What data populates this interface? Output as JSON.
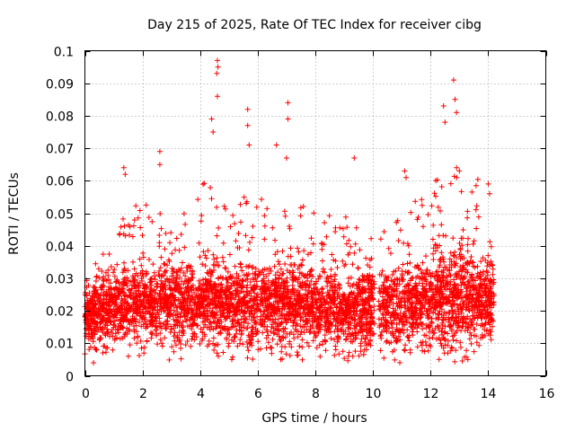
{
  "chart_data": {
    "type": "scatter",
    "title": "Day 215 of 2025, Rate Of TEC Index for receiver cibg",
    "xlabel": "GPS time / hours",
    "ylabel": "ROTI / TECUs",
    "xlim": [
      0,
      16
    ],
    "ylim": [
      0,
      0.1
    ],
    "xticks": [
      "0",
      "2",
      "4",
      "6",
      "8",
      "10",
      "12",
      "14",
      "16"
    ],
    "yticks": [
      "0",
      "0.01",
      "0.02",
      "0.03",
      "0.04",
      "0.05",
      "0.06",
      "0.07",
      "0.08",
      "0.09",
      "0.1"
    ],
    "grid": true,
    "marker": "+",
    "series_color": "#ff0000",
    "data_gaps_hours": [
      [
        10.05,
        10.2
      ]
    ],
    "notable_points": [
      {
        "x": 4.6,
        "y": 0.097
      },
      {
        "x": 4.62,
        "y": 0.095
      },
      {
        "x": 4.58,
        "y": 0.093
      },
      {
        "x": 4.6,
        "y": 0.086
      },
      {
        "x": 12.8,
        "y": 0.091
      },
      {
        "x": 12.85,
        "y": 0.085
      },
      {
        "x": 12.9,
        "y": 0.081
      },
      {
        "x": 12.45,
        "y": 0.083
      },
      {
        "x": 12.5,
        "y": 0.078
      },
      {
        "x": 7.05,
        "y": 0.084
      },
      {
        "x": 7.05,
        "y": 0.079
      },
      {
        "x": 5.65,
        "y": 0.082
      },
      {
        "x": 5.65,
        "y": 0.077
      },
      {
        "x": 5.7,
        "y": 0.071
      },
      {
        "x": 4.4,
        "y": 0.079
      },
      {
        "x": 4.45,
        "y": 0.075
      },
      {
        "x": 6.65,
        "y": 0.071
      },
      {
        "x": 2.6,
        "y": 0.069
      },
      {
        "x": 2.6,
        "y": 0.065
      },
      {
        "x": 7.0,
        "y": 0.067
      },
      {
        "x": 9.35,
        "y": 0.067
      },
      {
        "x": 1.35,
        "y": 0.064
      },
      {
        "x": 1.4,
        "y": 0.062
      },
      {
        "x": 11.1,
        "y": 0.063
      },
      {
        "x": 11.15,
        "y": 0.061
      },
      {
        "x": 13.0,
        "y": 0.063
      },
      {
        "x": 14.0,
        "y": 0.059
      },
      {
        "x": 14.05,
        "y": 0.056
      },
      {
        "x": 0.3,
        "y": 0.004
      },
      {
        "x": 5.1,
        "y": 0.005
      },
      {
        "x": 6.8,
        "y": 0.005
      },
      {
        "x": 9.3,
        "y": 0.006
      },
      {
        "x": 12.6,
        "y": 0.007
      }
    ],
    "density_profile": {
      "description": "dense band of points; per-hour typical ROTI centre, spread and upper envelope",
      "hours": [
        0,
        1,
        2,
        3,
        4,
        5,
        6,
        7,
        8,
        9,
        10,
        11,
        12,
        13,
        14,
        14.2
      ],
      "centre": [
        0.018,
        0.021,
        0.022,
        0.022,
        0.022,
        0.021,
        0.021,
        0.022,
        0.021,
        0.02,
        0.02,
        0.021,
        0.023,
        0.024,
        0.023,
        0.022
      ],
      "spread": [
        0.006,
        0.007,
        0.008,
        0.008,
        0.008,
        0.008,
        0.008,
        0.008,
        0.008,
        0.008,
        0.008,
        0.009,
        0.009,
        0.01,
        0.008,
        0.007
      ],
      "upper": [
        0.03,
        0.045,
        0.055,
        0.05,
        0.06,
        0.055,
        0.055,
        0.055,
        0.05,
        0.05,
        0.045,
        0.05,
        0.06,
        0.065,
        0.058,
        0.045
      ],
      "x_end": 14.2,
      "total_points": 9000,
      "seed": 215
    }
  }
}
